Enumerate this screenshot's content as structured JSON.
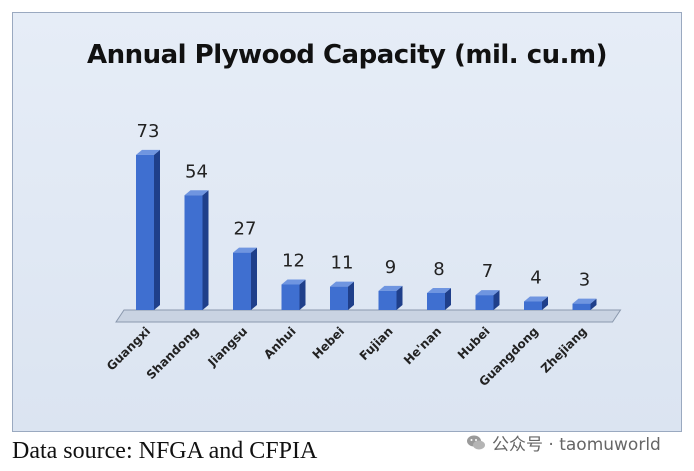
{
  "chart_data": {
    "type": "bar",
    "title": "Annual Plywood Capacity (mil. cu.m)",
    "categories": [
      "Guangxi",
      "Shandong",
      "Jiangsu",
      "Anhui",
      "Hebei",
      "Fujian",
      "He'nan",
      "Hubei",
      "Guangdong",
      "Zhejiang"
    ],
    "values": [
      73,
      54,
      27,
      12,
      11,
      9,
      8,
      7,
      4,
      3
    ],
    "data_labels": [
      "73",
      "54",
      "27",
      "12",
      "11",
      "9",
      "8",
      "7",
      "4",
      "3"
    ],
    "xlabel": "",
    "ylabel": "",
    "ylim": [
      0,
      80
    ],
    "grid": false,
    "legend": "none",
    "bar_color": "#3f6fd0",
    "bar_side_color": "#1f3f8a",
    "bar_top_color": "#6f95e0"
  },
  "source_note": "Data source: NFGA and CFPIA",
  "watermark": {
    "text": "公众号 · taomuworld",
    "icon": "wechat-icon"
  }
}
